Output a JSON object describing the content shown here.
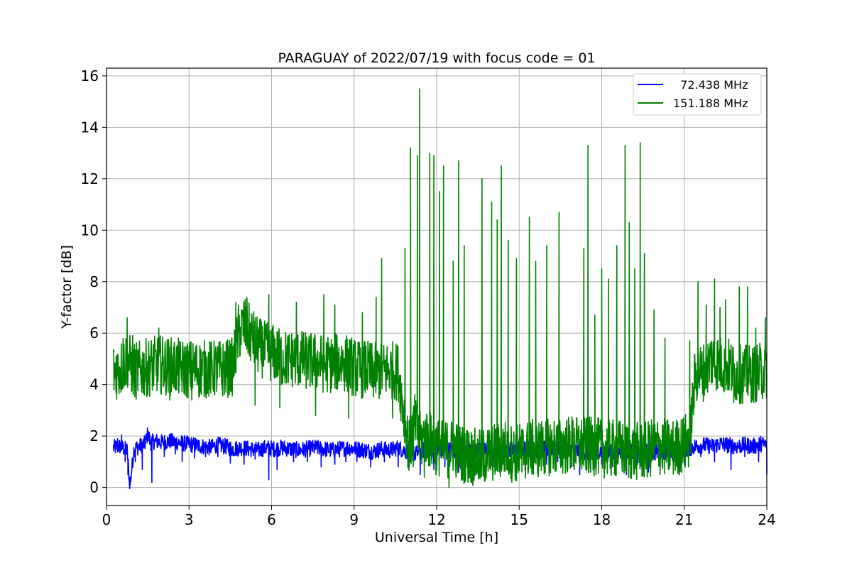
{
  "chart_data": {
    "type": "line",
    "title": "PARAGUAY of 2022/07/19 with focus code = 01",
    "xlabel": "Universal Time [h]",
    "ylabel": "Y-factor [dB]",
    "xlim": [
      0,
      24
    ],
    "ylim": [
      -0.7,
      16.3
    ],
    "xticks": [
      0,
      3,
      6,
      9,
      12,
      15,
      18,
      21,
      24
    ],
    "yticks": [
      0,
      2,
      4,
      6,
      8,
      10,
      12,
      14,
      16
    ],
    "grid": true,
    "legend_position": "top-right",
    "series": [
      {
        "name": "  72.438 MHz",
        "color": "#0000ff",
        "x": [
          0.25,
          0.5,
          0.75,
          0.85,
          1.0,
          1.2,
          1.4,
          1.5,
          1.6,
          1.8,
          2.0,
          2.3,
          2.6,
          2.9,
          3.2,
          3.5,
          3.8,
          4.0,
          4.3,
          4.6,
          4.9,
          5.2,
          5.5,
          5.8,
          6.1,
          6.4,
          6.7,
          7.0,
          7.3,
          7.6,
          7.9,
          8.2,
          8.5,
          8.8,
          9.1,
          9.4,
          9.7,
          10.0,
          10.3,
          10.6,
          10.9,
          11.2,
          11.5,
          11.8,
          12.1,
          12.4,
          12.7,
          13.0,
          13.3,
          13.6,
          13.9,
          14.2,
          14.5,
          14.8,
          15.1,
          15.4,
          15.7,
          16.0,
          16.3,
          16.6,
          16.9,
          17.2,
          17.5,
          17.8,
          18.1,
          18.4,
          18.7,
          19.0,
          19.3,
          19.6,
          19.9,
          20.2,
          20.5,
          20.8,
          21.1,
          21.4,
          21.7,
          22.0,
          22.3,
          22.6,
          22.9,
          23.2,
          23.5,
          23.8,
          24.0
        ],
        "values": [
          1.55,
          1.6,
          1.45,
          0.05,
          1.5,
          1.6,
          1.7,
          2.1,
          1.75,
          1.8,
          1.75,
          1.8,
          1.75,
          1.7,
          1.65,
          1.6,
          1.55,
          1.65,
          1.6,
          1.5,
          1.55,
          1.5,
          1.45,
          1.55,
          1.5,
          1.55,
          1.5,
          1.45,
          1.5,
          1.55,
          1.5,
          1.45,
          1.5,
          1.55,
          1.5,
          1.45,
          1.4,
          1.5,
          1.45,
          1.55,
          1.4,
          1.3,
          1.45,
          1.5,
          1.4,
          1.5,
          1.35,
          1.45,
          1.5,
          1.4,
          1.5,
          1.55,
          1.45,
          1.5,
          1.55,
          1.5,
          1.45,
          1.5,
          1.55,
          1.45,
          1.5,
          1.4,
          1.35,
          1.45,
          1.4,
          1.35,
          1.4,
          1.45,
          1.3,
          1.4,
          1.35,
          1.45,
          1.3,
          1.4,
          1.5,
          1.6,
          1.65,
          1.6,
          1.7,
          1.65,
          1.6,
          1.65,
          1.6,
          1.7,
          1.65
        ]
      },
      {
        "name": "151.188 MHz",
        "color": "#008000",
        "x": [
          0.25,
          0.5,
          0.75,
          1.0,
          1.3,
          1.6,
          1.9,
          2.2,
          2.5,
          2.8,
          3.1,
          3.4,
          3.7,
          4.0,
          4.3,
          4.6,
          4.8,
          5.0,
          5.2,
          5.5,
          5.8,
          6.1,
          6.4,
          6.7,
          7.0,
          7.3,
          7.6,
          7.9,
          8.2,
          8.5,
          8.8,
          9.1,
          9.4,
          9.7,
          10.0,
          10.3,
          10.6,
          10.8,
          11.0,
          11.2,
          11.4,
          11.6,
          11.8,
          12.0,
          12.2,
          12.4,
          12.6,
          12.8,
          13.0,
          13.3,
          13.6,
          13.9,
          14.2,
          14.5,
          14.8,
          15.1,
          15.4,
          15.7,
          16.0,
          16.3,
          16.6,
          16.9,
          17.2,
          17.5,
          17.8,
          18.1,
          18.4,
          18.7,
          19.0,
          19.3,
          19.6,
          19.9,
          20.2,
          20.5,
          20.8,
          21.0,
          21.2,
          21.4,
          21.7,
          22.0,
          22.3,
          22.6,
          22.9,
          23.2,
          23.5,
          23.8,
          24.0
        ],
        "values": [
          4.5,
          4.6,
          5.0,
          4.5,
          4.6,
          4.7,
          4.8,
          4.7,
          4.7,
          4.6,
          4.6,
          4.6,
          4.6,
          4.6,
          4.6,
          4.7,
          6.0,
          6.3,
          6.0,
          5.5,
          5.3,
          5.2,
          5.0,
          5.0,
          5.0,
          4.9,
          4.9,
          4.8,
          4.8,
          4.9,
          4.8,
          4.6,
          4.6,
          4.5,
          4.5,
          4.6,
          4.5,
          3.0,
          1.5,
          2.5,
          1.8,
          2.0,
          1.8,
          1.6,
          1.5,
          1.5,
          1.6,
          1.4,
          1.3,
          1.2,
          1.1,
          1.3,
          1.4,
          1.5,
          1.3,
          1.4,
          1.5,
          1.5,
          1.6,
          1.6,
          1.6,
          1.7,
          1.6,
          1.6,
          1.6,
          1.5,
          1.5,
          1.5,
          1.4,
          1.4,
          1.4,
          1.6,
          1.6,
          1.5,
          1.6,
          1.7,
          1.9,
          4.4,
          4.5,
          5.0,
          4.8,
          4.7,
          4.4,
          4.4,
          4.4,
          4.5,
          4.6
        ]
      }
    ],
    "spikes": [
      {
        "series": 0,
        "x": [
          0.4,
          0.55,
          0.68,
          0.78,
          0.85,
          1.05,
          1.3,
          1.65,
          2.1,
          2.5,
          2.75,
          3.2,
          3.6,
          4.05,
          4.5,
          5.0,
          5.4,
          5.9,
          6.2,
          6.8,
          7.3,
          7.8,
          8.3,
          8.7,
          9.1,
          9.6,
          10.1,
          10.6,
          11.0,
          11.4,
          11.9,
          12.3,
          12.8,
          13.2,
          13.7,
          14.1,
          14.6,
          15.0,
          15.5,
          16.0,
          16.4,
          16.9,
          17.2,
          17.6,
          18.0,
          18.4,
          18.9,
          19.3,
          19.7,
          20.2,
          20.6,
          21.0,
          21.6,
          22.1,
          22.7,
          23.2,
          23.7,
          24.0
        ],
        "values": [
          1.9,
          2.05,
          1.0,
          0.5,
          0.0,
          1.0,
          0.7,
          0.2,
          1.2,
          1.3,
          1.0,
          1.15,
          1.2,
          1.2,
          0.95,
          0.9,
          1.1,
          0.3,
          0.7,
          1.0,
          1.0,
          0.8,
          0.9,
          1.0,
          1.0,
          0.8,
          1.0,
          0.8,
          0.8,
          0.5,
          0.7,
          0.8,
          0.6,
          0.9,
          0.6,
          0.8,
          1.0,
          1.9,
          2.0,
          0.9,
          1.0,
          0.8,
          0.5,
          0.6,
          0.9,
          0.8,
          0.5,
          0.9,
          0.6,
          0.8,
          0.8,
          0.9,
          1.2,
          1.0,
          0.7,
          1.2,
          1.0,
          0.5
        ]
      },
      {
        "series": 1,
        "x": [
          0.35,
          0.6,
          0.75,
          0.95,
          1.5,
          1.9,
          2.3,
          3.1,
          3.6,
          4.2,
          4.7,
          5.1,
          5.4,
          5.9,
          6.3,
          6.9,
          7.6,
          7.9,
          8.3,
          8.8,
          9.3,
          9.8,
          10.0,
          10.4,
          10.85,
          11.05,
          11.15,
          11.3,
          11.38,
          11.55,
          11.75,
          11.9,
          12.1,
          12.25,
          12.45,
          12.6,
          12.8,
          13.0,
          13.35,
          13.65,
          14.0,
          14.2,
          14.35,
          14.6,
          14.9,
          15.1,
          15.37,
          15.6,
          16.0,
          16.45,
          17.0,
          17.35,
          17.5,
          17.75,
          18.0,
          18.25,
          18.55,
          18.85,
          19.0,
          19.2,
          19.4,
          19.55,
          19.9,
          20.3,
          20.75,
          21.2,
          21.5,
          21.8,
          22.1,
          22.3,
          22.5,
          22.8,
          23.0,
          23.3,
          23.6,
          23.95
        ],
        "values": [
          5.1,
          5.8,
          6.6,
          5.9,
          3.6,
          6.2,
          3.4,
          3.4,
          3.9,
          3.8,
          7.2,
          7.4,
          3.2,
          7.5,
          3.1,
          7.2,
          2.8,
          7.5,
          7.1,
          2.7,
          6.8,
          7.4,
          8.9,
          2.7,
          9.3,
          13.2,
          0.8,
          12.9,
          15.5,
          0.4,
          13.0,
          12.9,
          11.5,
          12.5,
          0.0,
          8.8,
          12.7,
          9.4,
          0.5,
          12.0,
          11.1,
          10.4,
          12.5,
          9.6,
          8.9,
          0.6,
          10.5,
          8.8,
          9.4,
          10.7,
          0.7,
          9.3,
          13.3,
          6.7,
          8.5,
          8.1,
          9.4,
          13.3,
          10.3,
          8.5,
          13.4,
          9.1,
          6.9,
          5.8,
          2.4,
          5.7,
          8.0,
          7.1,
          8.1,
          7.0,
          7.3,
          3.3,
          7.8,
          7.8,
          6.2,
          6.6
        ]
      }
    ]
  }
}
